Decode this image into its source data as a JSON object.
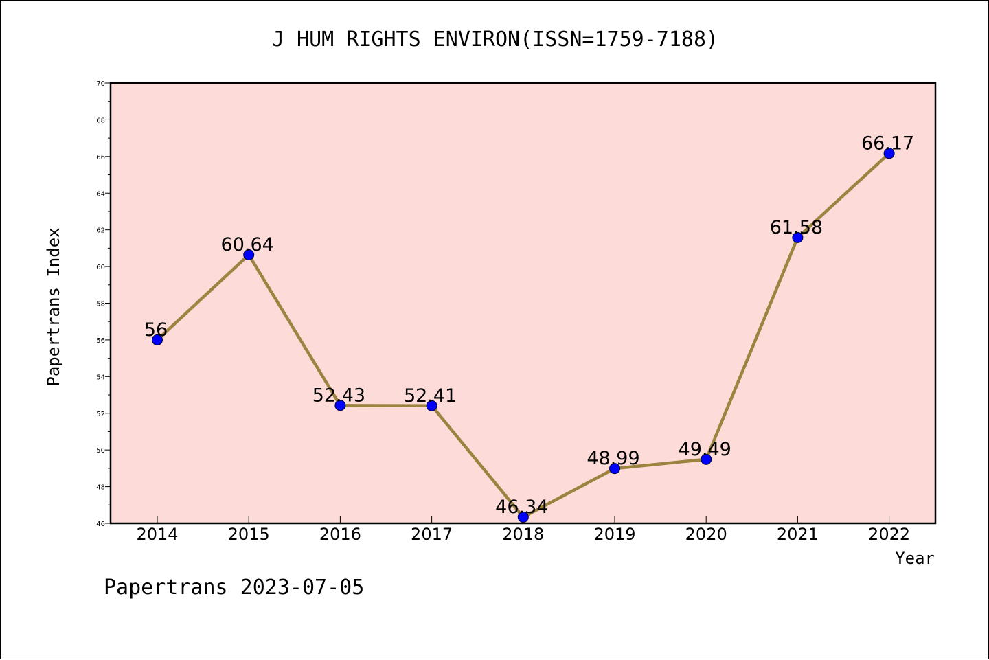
{
  "chart_data": {
    "type": "line",
    "title": "J HUM RIGHTS ENVIRON(ISSN=1759-7188)",
    "xlabel": "Year",
    "ylabel": "Papertrans Index",
    "categories": [
      "2014",
      "2015",
      "2016",
      "2017",
      "2018",
      "2019",
      "2020",
      "2021",
      "2022"
    ],
    "values": [
      56,
      60.64,
      52.43,
      52.41,
      46.34,
      48.99,
      49.49,
      61.58,
      66.17
    ],
    "value_labels": [
      "56",
      "60.64",
      "52.43",
      "52.41",
      "46.34",
      "48.99",
      "49.49",
      "61.58",
      "66.17"
    ],
    "ylim": [
      46,
      70
    ],
    "yticks": [
      46,
      48,
      50,
      52,
      54,
      56,
      58,
      60,
      62,
      64,
      66,
      68,
      70
    ],
    "grid": false,
    "legend": "none",
    "colors": {
      "plot_background": "#fddbd8",
      "line": "#9c8340",
      "marker": "#0000ff"
    }
  },
  "footer": "Papertrans 2023-07-05"
}
